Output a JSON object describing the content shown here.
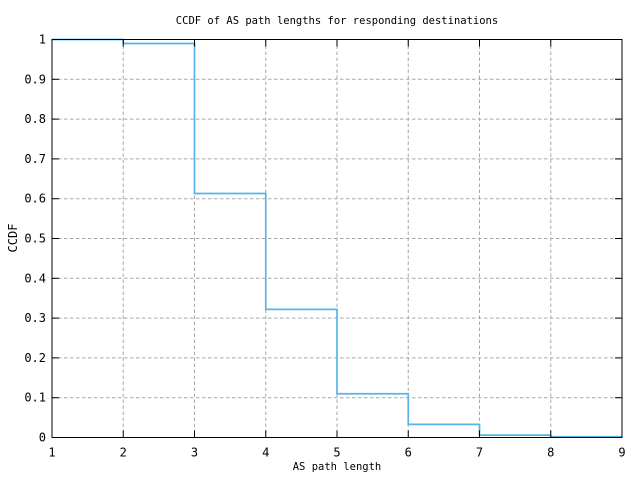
{
  "figure": {
    "background_color": "#ffffff",
    "text_color": "#000000"
  },
  "chart_data": {
    "type": "line",
    "style": "steps",
    "title": "CCDF of AS path lengths for responding destinations",
    "xlabel": "AS path length",
    "ylabel": "CCDF",
    "xlim": [
      1,
      9
    ],
    "ylim": [
      0,
      1
    ],
    "grid": "dashed-gray-at-every-tick",
    "legend": "none",
    "line_color": "#56B4E9",
    "grid_color": "#a8a8a8",
    "frame_color": "#000000",
    "x_ticks": [
      {
        "label": "1",
        "value": 1
      },
      {
        "label": "2",
        "value": 2
      },
      {
        "label": "3",
        "value": 3
      },
      {
        "label": "4",
        "value": 4
      },
      {
        "label": "5",
        "value": 5
      },
      {
        "label": "6",
        "value": 6
      },
      {
        "label": "7",
        "value": 7
      },
      {
        "label": "8",
        "value": 8
      },
      {
        "label": "9",
        "value": 9
      }
    ],
    "y_ticks": [
      {
        "label": "0",
        "value": 0
      },
      {
        "label": "0.1",
        "value": 0.1
      },
      {
        "label": "0.2",
        "value": 0.2
      },
      {
        "label": "0.3",
        "value": 0.3
      },
      {
        "label": "0.4",
        "value": 0.4
      },
      {
        "label": "0.5",
        "value": 0.5
      },
      {
        "label": "0.6",
        "value": 0.6
      },
      {
        "label": "0.7",
        "value": 0.7
      },
      {
        "label": "0.8",
        "value": 0.8
      },
      {
        "label": "0.9",
        "value": 0.9
      },
      {
        "label": "1",
        "value": 1
      }
    ],
    "steps": [
      {
        "x_start": 1,
        "x_end": 2,
        "ccdf": 1.0
      },
      {
        "x_start": 2,
        "x_end": 3,
        "ccdf": 0.99
      },
      {
        "x_start": 3,
        "x_end": 4,
        "ccdf": 0.613
      },
      {
        "x_start": 4,
        "x_end": 5,
        "ccdf": 0.322
      },
      {
        "x_start": 5,
        "x_end": 6,
        "ccdf": 0.11
      },
      {
        "x_start": 6,
        "x_end": 7,
        "ccdf": 0.033
      },
      {
        "x_start": 7,
        "x_end": 8,
        "ccdf": 0.006
      },
      {
        "x_start": 8,
        "x_end": 9,
        "ccdf": 0.002
      }
    ]
  }
}
